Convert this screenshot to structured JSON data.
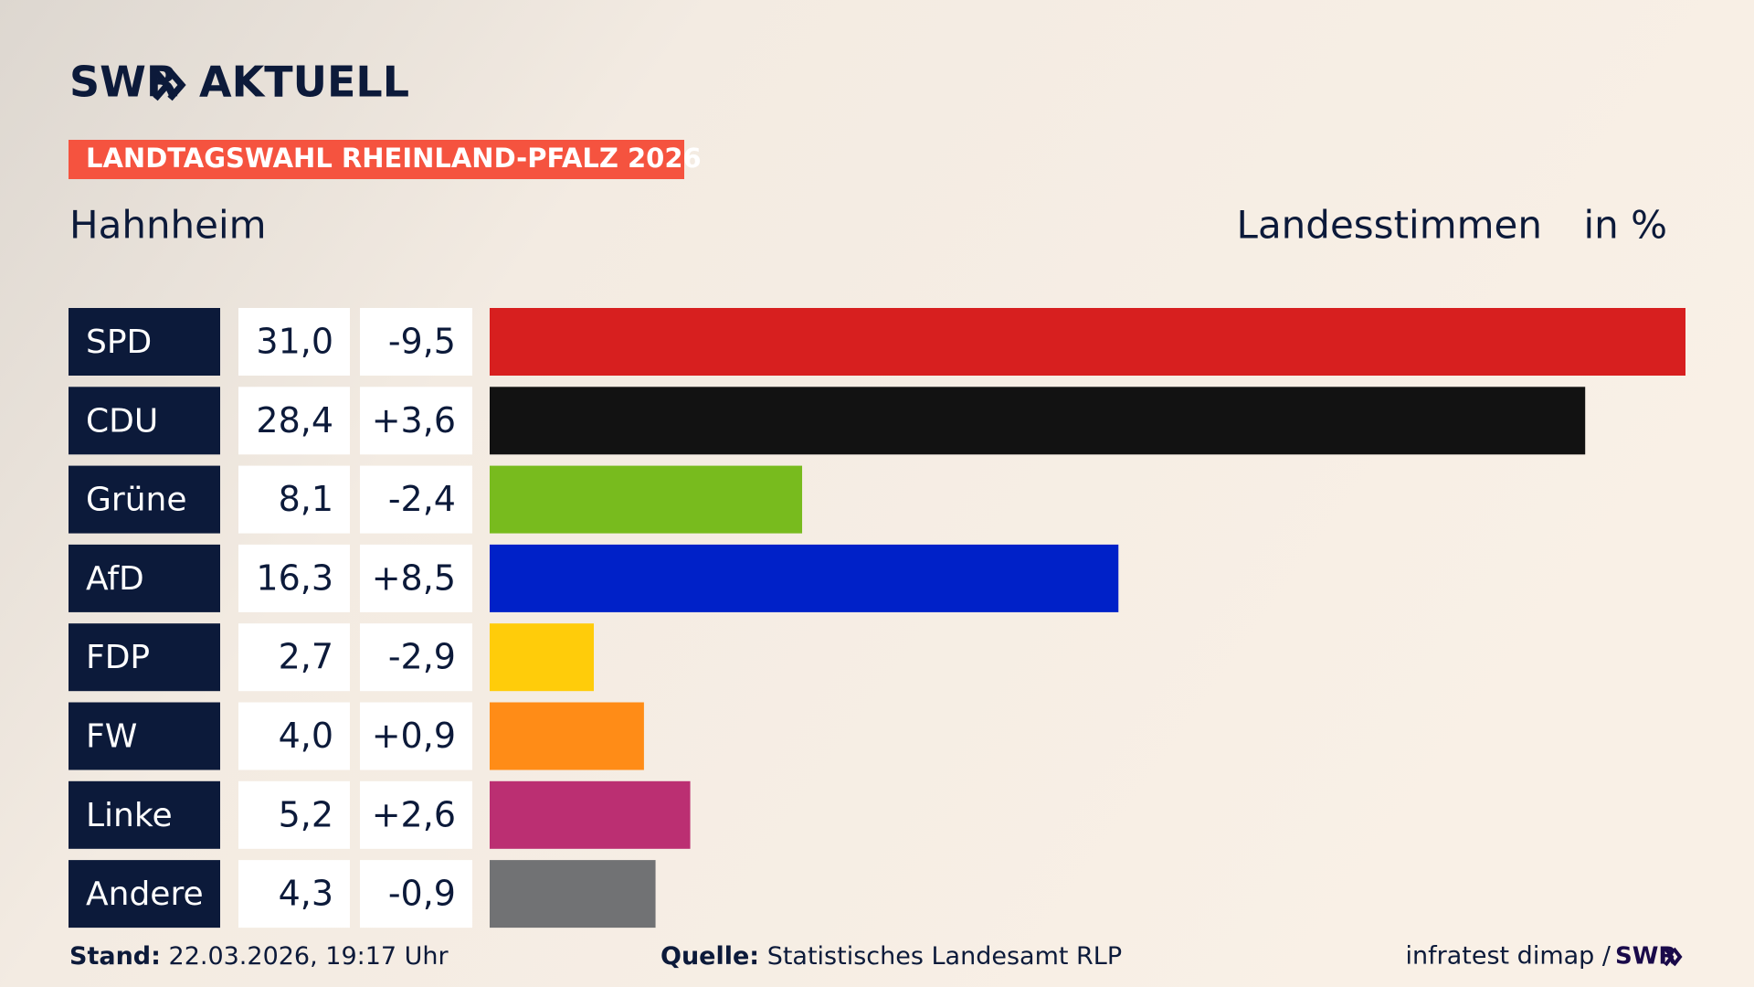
{
  "header": {
    "logo": "SWR",
    "logo_suffix": "AKTUELL",
    "banner": "LANDTAGSWAHL RHEINLAND-PFALZ 2026"
  },
  "chart_data": {
    "type": "bar",
    "orientation": "horizontal",
    "title": "Hahnheim",
    "subtitle": "Landesstimmen",
    "unit_label": "in %",
    "categories": [
      "SPD",
      "CDU",
      "Grüne",
      "AfD",
      "FDP",
      "FW",
      "Linke",
      "Andere"
    ],
    "values": [
      31.0,
      28.4,
      8.1,
      16.3,
      2.7,
      4.0,
      5.2,
      4.3
    ],
    "value_labels": [
      "31,0",
      "28,4",
      "8,1",
      "16,3",
      "2,7",
      "4,0",
      "5,2",
      "4,3"
    ],
    "changes": [
      -9.5,
      3.6,
      -2.4,
      8.5,
      -2.9,
      0.9,
      2.6,
      -0.9
    ],
    "change_labels": [
      "-9,5",
      "+3,6",
      "-2,4",
      "+8,5",
      "-2,9",
      "+0,9",
      "+2,6",
      "-0,9"
    ],
    "colors": [
      "#d71f1f",
      "#121212",
      "#78bb1e",
      "#0021c8",
      "#ffcc0a",
      "#ff8c17",
      "#bb2f72",
      "#717274"
    ]
  },
  "footer": {
    "stand_label": "Stand:",
    "stand": "22.03.2026, 19:17 Uhr",
    "source_label": "Quelle:",
    "source": "Statistisches Landesamt RLP",
    "credit": "infratest dimap /",
    "credit_logo": "SWR"
  }
}
